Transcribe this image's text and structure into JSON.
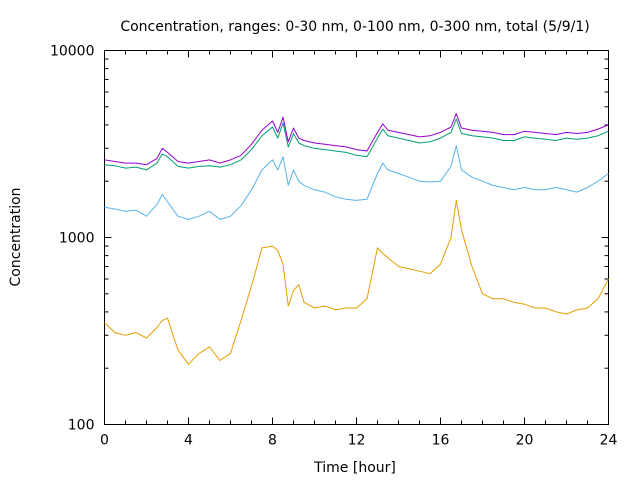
{
  "chart_data": {
    "type": "line",
    "title": "Concentration, ranges: 0-30 nm, 0-100 nm, 0-300 nm, total (5/9/1)",
    "xlabel": "Time [hour]",
    "ylabel": "Concentration",
    "xlim": [
      0,
      24
    ],
    "ylim": [
      100,
      10000
    ],
    "yscale": "log",
    "grid": false,
    "legend": "none",
    "x_ticks": [
      "0",
      "4",
      "8",
      "12",
      "16",
      "20",
      "24"
    ],
    "y_ticks": [
      "100",
      "1000",
      "10000"
    ],
    "x": [
      0,
      0.5,
      1,
      1.5,
      2,
      2.5,
      2.75,
      3,
      3.5,
      4,
      4.5,
      5,
      5.5,
      6,
      6.5,
      7,
      7.5,
      8,
      8.25,
      8.5,
      8.75,
      9,
      9.25,
      9.5,
      10,
      10.5,
      11,
      11.5,
      12,
      12.5,
      13,
      13.25,
      13.5,
      14,
      14.5,
      15,
      15.5,
      16,
      16.5,
      16.75,
      17,
      17.5,
      18,
      18.5,
      19,
      19.5,
      20,
      20.5,
      21,
      21.5,
      22,
      22.5,
      23,
      23.5,
      24
    ],
    "series": [
      {
        "color": "#e69f00",
        "values": [
          350,
          310,
          300,
          310,
          290,
          330,
          360,
          370,
          250,
          210,
          240,
          260,
          220,
          240,
          360,
          550,
          880,
          900,
          850,
          720,
          430,
          520,
          560,
          450,
          420,
          430,
          410,
          420,
          420,
          470,
          880,
          820,
          780,
          700,
          680,
          660,
          640,
          720,
          1000,
          1580,
          1100,
          700,
          500,
          470,
          470,
          450,
          440,
          420,
          420,
          400,
          390,
          410,
          420,
          470,
          600
        ]
      },
      {
        "color": "#56b4e9",
        "values": [
          1450,
          1420,
          1380,
          1400,
          1300,
          1500,
          1700,
          1550,
          1300,
          1250,
          1300,
          1380,
          1250,
          1300,
          1480,
          1800,
          2300,
          2600,
          2300,
          2700,
          1900,
          2300,
          2000,
          1900,
          1800,
          1750,
          1650,
          1600,
          1580,
          1600,
          2200,
          2500,
          2300,
          2200,
          2100,
          2000,
          1980,
          2000,
          2400,
          3100,
          2300,
          2100,
          2000,
          1900,
          1850,
          1800,
          1850,
          1800,
          1800,
          1850,
          1800,
          1750,
          1850,
          2000,
          2200
        ]
      },
      {
        "color": "#009e73",
        "values": [
          2450,
          2420,
          2350,
          2380,
          2300,
          2500,
          2800,
          2700,
          2400,
          2350,
          2400,
          2420,
          2380,
          2450,
          2600,
          2950,
          3500,
          3900,
          3400,
          4100,
          3050,
          3600,
          3200,
          3100,
          3000,
          2950,
          2900,
          2850,
          2750,
          2700,
          3400,
          3800,
          3500,
          3400,
          3300,
          3200,
          3250,
          3400,
          3650,
          4300,
          3600,
          3500,
          3450,
          3400,
          3300,
          3300,
          3450,
          3400,
          3350,
          3300,
          3400,
          3350,
          3400,
          3500,
          3700
        ]
      },
      {
        "color": "#9400d3",
        "values": [
          2600,
          2550,
          2500,
          2500,
          2450,
          2650,
          3000,
          2850,
          2550,
          2500,
          2550,
          2600,
          2500,
          2600,
          2750,
          3150,
          3750,
          4200,
          3650,
          4400,
          3250,
          3850,
          3400,
          3300,
          3200,
          3150,
          3100,
          3050,
          2950,
          2900,
          3650,
          4050,
          3750,
          3650,
          3550,
          3450,
          3500,
          3650,
          3900,
          4600,
          3850,
          3750,
          3700,
          3650,
          3550,
          3550,
          3700,
          3650,
          3600,
          3550,
          3650,
          3600,
          3650,
          3800,
          4000
        ]
      }
    ]
  }
}
